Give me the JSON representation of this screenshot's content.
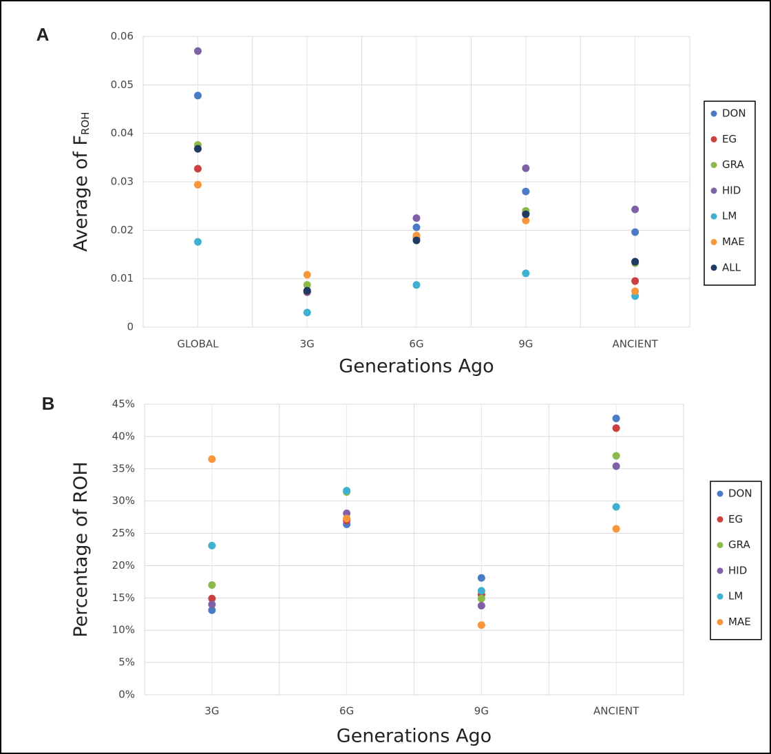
{
  "chart_data": [
    {
      "type": "scatter",
      "panel": "A",
      "y_label": "Average of F",
      "y_label_subscript": "ROH",
      "x_label": "Generations Ago",
      "categories": [
        "GLOBAL",
        "3G",
        "6G",
        "9G",
        "ANCIENT"
      ],
      "ylim": [
        0,
        0.06
      ],
      "yticks": [
        0,
        0.01,
        0.02,
        0.03,
        0.04,
        0.05,
        0.06
      ],
      "grid": true,
      "legend": "right",
      "series": [
        {
          "name": "DON",
          "color": "#4a7bc4",
          "values": [
            0.0478,
            0.0072,
            0.0206,
            0.028,
            0.0196
          ]
        },
        {
          "name": "EG",
          "color": "#c9413e",
          "values": [
            0.0327,
            0.0073,
            0.0185,
            0.0235,
            0.0095
          ]
        },
        {
          "name": "GRA",
          "color": "#8db84a",
          "values": [
            0.0376,
            0.0087,
            0.0187,
            0.024,
            0.0132
          ]
        },
        {
          "name": "HID",
          "color": "#8061a8",
          "values": [
            0.057,
            0.0075,
            0.0225,
            0.0328,
            0.0243
          ]
        },
        {
          "name": "LM",
          "color": "#3fb0cf",
          "values": [
            0.0176,
            0.003,
            0.0087,
            0.0111,
            0.0064
          ]
        },
        {
          "name": "MAE",
          "color": "#f7963a",
          "values": [
            0.0294,
            0.0108,
            0.0189,
            0.022,
            0.0074
          ]
        },
        {
          "name": "ALL",
          "color": "#1f3a64",
          "values": [
            0.0368,
            0.0075,
            0.0179,
            0.0233,
            0.0135
          ]
        }
      ]
    },
    {
      "type": "scatter",
      "panel": "B",
      "y_label": "Percentage of ROH",
      "x_label": "Generations Ago",
      "categories": [
        "3G",
        "6G",
        "9G",
        "ANCIENT"
      ],
      "ylim": [
        0,
        45
      ],
      "yticks": [
        {
          "value": 0,
          "label": "0%"
        },
        {
          "value": 5,
          "label": "5%"
        },
        {
          "value": 10,
          "label": "10%"
        },
        {
          "value": 15,
          "label": "15%"
        },
        {
          "value": 20,
          "label": "20%"
        },
        {
          "value": 25,
          "label": "25%"
        },
        {
          "value": 30,
          "label": "30%"
        },
        {
          "value": 35,
          "label": "35%"
        },
        {
          "value": 40,
          "label": "40%"
        },
        {
          "value": 45,
          "label": "45%"
        }
      ],
      "grid": true,
      "legend": "right",
      "series": [
        {
          "name": "DON",
          "color": "#4a7bc4",
          "values": [
            13.1,
            26.4,
            18.1,
            42.8
          ]
        },
        {
          "name": "EG",
          "color": "#c9413e",
          "values": [
            14.9,
            27.0,
            15.5,
            41.3
          ]
        },
        {
          "name": "GRA",
          "color": "#8db84a",
          "values": [
            17.0,
            31.4,
            14.9,
            37.0
          ]
        },
        {
          "name": "HID",
          "color": "#8061a8",
          "values": [
            14.0,
            28.1,
            13.8,
            35.4
          ]
        },
        {
          "name": "LM",
          "color": "#3fb0cf",
          "values": [
            23.1,
            31.6,
            16.1,
            29.1
          ]
        },
        {
          "name": "MAE",
          "color": "#f7963a",
          "values": [
            36.5,
            27.3,
            10.8,
            25.7
          ]
        }
      ]
    }
  ]
}
